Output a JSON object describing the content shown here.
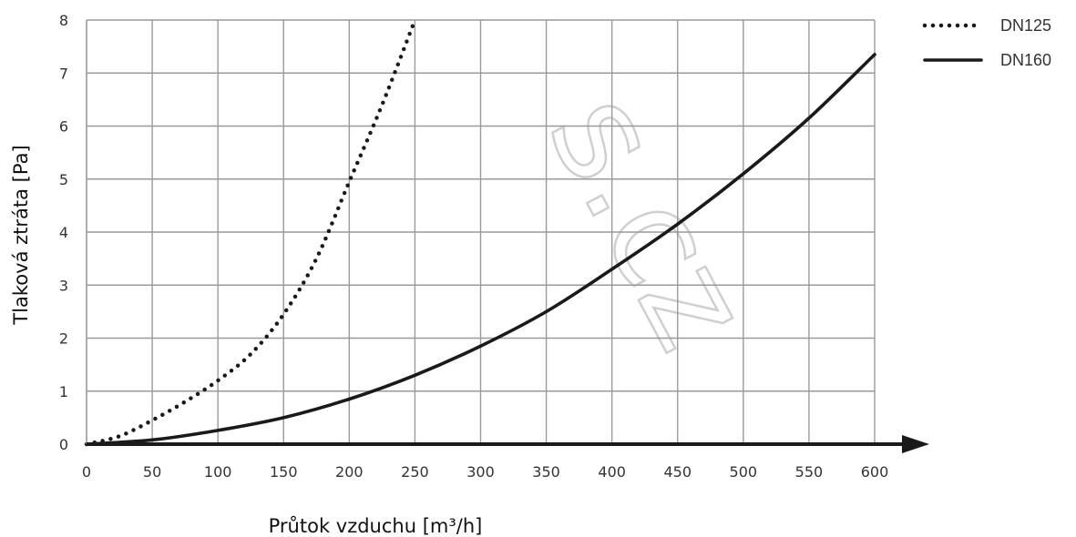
{
  "chart_data": {
    "type": "line",
    "title": "",
    "xlabel": "Průtok vzduchu [m³/h]",
    "ylabel": "Tlaková ztráta [Pa]",
    "xlim": [
      0,
      600
    ],
    "ylim": [
      0,
      8
    ],
    "xticks": [
      0,
      50,
      100,
      150,
      200,
      250,
      300,
      350,
      400,
      450,
      500,
      550,
      600
    ],
    "yticks": [
      0,
      1,
      2,
      3,
      4,
      5,
      6,
      7,
      8
    ],
    "grid": true,
    "legend_position": "top-right",
    "series": [
      {
        "name": "DN125",
        "style": "dotted",
        "color": "#1a1a1a",
        "x": [
          0,
          25,
          50,
          75,
          100,
          125,
          150,
          175,
          200,
          225,
          250
        ],
        "y": [
          0,
          0.15,
          0.45,
          0.8,
          1.2,
          1.7,
          2.45,
          3.5,
          4.95,
          6.4,
          8.0
        ]
      },
      {
        "name": "DN160",
        "style": "solid",
        "color": "#1a1a1a",
        "x": [
          0,
          50,
          100,
          150,
          200,
          250,
          300,
          350,
          400,
          450,
          500,
          550,
          600
        ],
        "y": [
          0,
          0.08,
          0.26,
          0.5,
          0.85,
          1.3,
          1.85,
          2.5,
          3.3,
          4.15,
          5.1,
          6.15,
          7.35
        ]
      }
    ]
  },
  "watermark": {
    "text": "s.cz"
  }
}
